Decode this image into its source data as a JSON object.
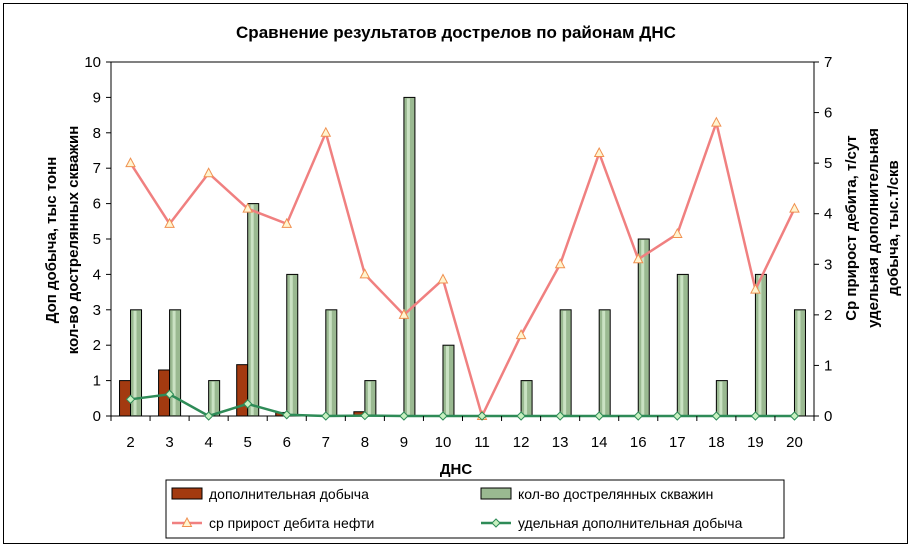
{
  "chart_data": {
    "type": "bar",
    "title": "Сравнение результатов дострелов по районам ДНС",
    "xlabel": "ДНС",
    "ylabel_left": [
      "Доп добыча, тыс тонн",
      "кол-во дострелянных скважин"
    ],
    "ylabel_right": [
      "Ср прирост дебита, т/сут",
      "удельная дополнительная",
      "добыча, тыс.т/скв"
    ],
    "categories": [
      "2",
      "3",
      "4",
      "5",
      "6",
      "7",
      "8",
      "9",
      "10",
      "11",
      "12",
      "13",
      "14",
      "16",
      "17",
      "18",
      "19",
      "20"
    ],
    "ylim_left": [
      0,
      10
    ],
    "ylim_right": [
      0,
      7
    ],
    "left_ticks": [
      "0",
      "1",
      "2",
      "3",
      "4",
      "5",
      "6",
      "7",
      "8",
      "9",
      "10"
    ],
    "right_ticks": [
      "0",
      "1",
      "2",
      "3",
      "4",
      "5",
      "6",
      "7"
    ],
    "grid": false,
    "legend_position": "bottom",
    "series": [
      {
        "name": "дополнительная добыча",
        "kind": "bar",
        "axis": "left",
        "color": "#a33a10",
        "values": [
          1.0,
          1.3,
          0,
          1.45,
          0.1,
          0,
          0.12,
          0,
          0,
          0,
          0,
          0,
          0,
          0,
          0,
          0,
          0,
          0
        ]
      },
      {
        "name": "кол-во дострелянных скважин",
        "kind": "bar",
        "axis": "left",
        "color": "#9ab991",
        "values": [
          3,
          3,
          1,
          6,
          4,
          3,
          1,
          9,
          2,
          0,
          1,
          3,
          3,
          5,
          4,
          1,
          4,
          3
        ]
      },
      {
        "name": "ср прирост дебита нефти",
        "kind": "line",
        "axis": "right",
        "color": "#f08080",
        "marker": "triangle",
        "values": [
          5.0,
          3.8,
          4.8,
          4.1,
          3.8,
          5.6,
          2.8,
          2.0,
          2.7,
          0,
          1.6,
          3.0,
          5.2,
          3.1,
          3.6,
          5.8,
          2.5,
          4.1
        ]
      },
      {
        "name": "удельная дополнительная добыча",
        "kind": "line",
        "axis": "right",
        "color": "#2e8b57",
        "marker": "diamond",
        "values": [
          0.33,
          0.43,
          0,
          0.24,
          0.025,
          0,
          0.008,
          0,
          0,
          0,
          0,
          0,
          0,
          0,
          0,
          0,
          0,
          0
        ]
      }
    ]
  }
}
